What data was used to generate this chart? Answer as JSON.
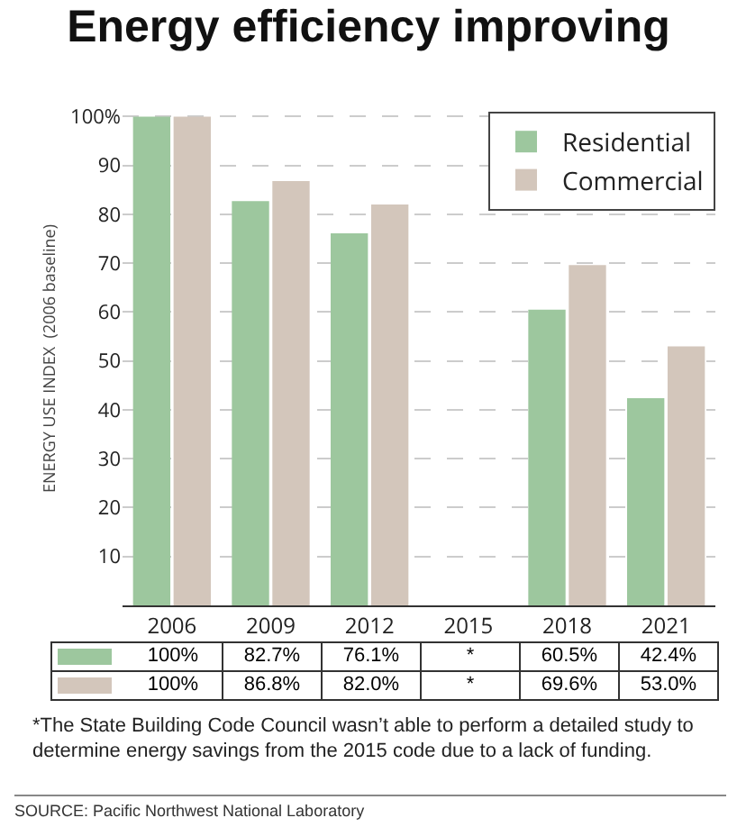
{
  "chart_data": {
    "type": "bar",
    "title": "Energy efficiency improving",
    "ylabel": "ENERGY USE INDEX  (2006 baseline)",
    "categories": [
      "2006",
      "2009",
      "2012",
      "2015",
      "2018",
      "2021"
    ],
    "series": [
      {
        "name": "Residential",
        "color": "#9dc79e",
        "values": [
          100,
          82.7,
          76.1,
          null,
          60.5,
          42.4
        ],
        "value_labels": [
          "100%",
          "82.7%",
          "76.1%",
          "*",
          "60.5%",
          "42.4%"
        ]
      },
      {
        "name": "Commercial",
        "color": "#d3c6bb",
        "values": [
          100,
          86.8,
          82.0,
          null,
          69.6,
          53.0
        ],
        "value_labels": [
          "100%",
          "86.8%",
          "82.0%",
          "*",
          "69.6%",
          "53.0%"
        ]
      }
    ],
    "ylim": [
      0,
      101
    ],
    "yticks": [
      10,
      20,
      30,
      40,
      50,
      60,
      70,
      80,
      90,
      {
        "value": 100,
        "label": "100%"
      }
    ],
    "grid": "y",
    "legend": "top right",
    "annotations": [
      "*The State Building Code Council wasn’t able to perform a detailed study to determine energy savings from the 2015 code due to a lack of funding.",
      "SOURCE: Pacific Northwest National Laboratory"
    ]
  }
}
